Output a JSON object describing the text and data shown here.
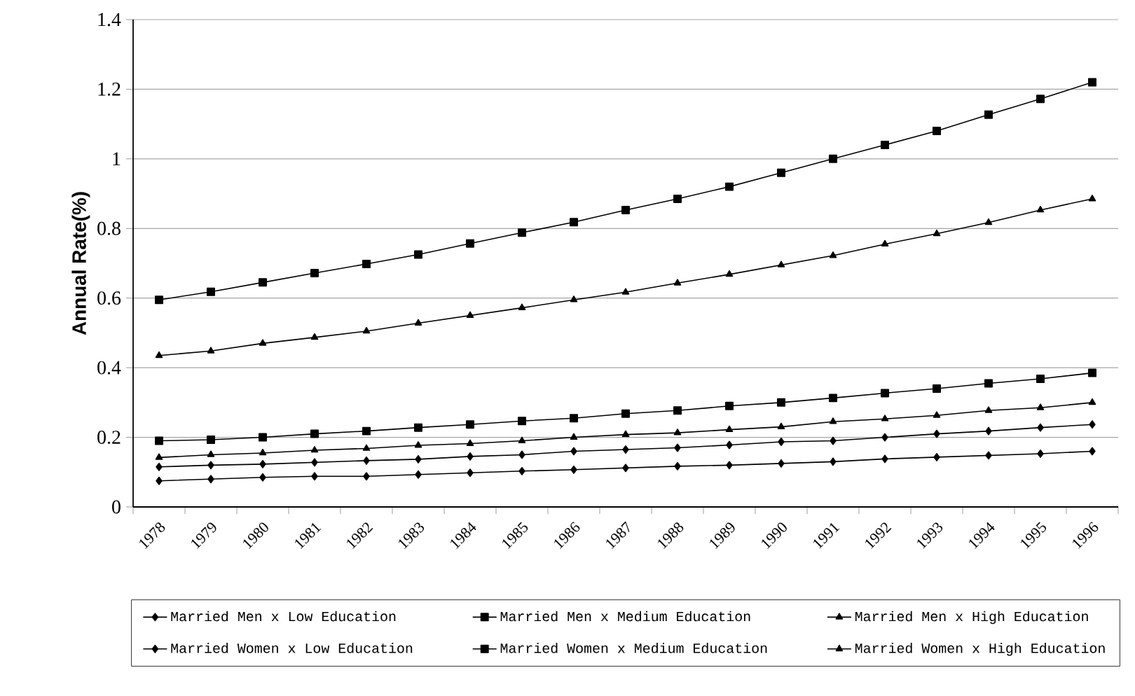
{
  "chart_data": {
    "type": "line",
    "ylabel": "Annual Rate(%)",
    "categories": [
      "1978",
      "1979",
      "1980",
      "1981",
      "1982",
      "1983",
      "1984",
      "1985",
      "1986",
      "1987",
      "1988",
      "1989",
      "1990",
      "1991",
      "1992",
      "1993",
      "1994",
      "1995",
      "1996"
    ],
    "series": [
      {
        "name": "Married Men x Low Education",
        "color": "#000000",
        "marker": "diamond",
        "values": [
          0.075,
          0.08,
          0.085,
          0.088,
          0.088,
          0.093,
          0.098,
          0.103,
          0.107,
          0.112,
          0.117,
          0.12,
          0.125,
          0.13,
          0.138,
          0.143,
          0.148,
          0.153,
          0.16
        ]
      },
      {
        "name": "Married Men x Medium Education",
        "color": "#000000",
        "marker": "square",
        "values": [
          0.595,
          0.618,
          0.645,
          0.672,
          0.698,
          0.725,
          0.757,
          0.788,
          0.818,
          0.853,
          0.885,
          0.92,
          0.96,
          1.0,
          1.04,
          1.08,
          1.127,
          1.172,
          1.22
        ]
      },
      {
        "name": "Married Men x High Education",
        "color": "#000000",
        "marker": "triangle",
        "values": [
          0.435,
          0.448,
          0.47,
          0.487,
          0.505,
          0.528,
          0.55,
          0.572,
          0.595,
          0.617,
          0.643,
          0.668,
          0.695,
          0.722,
          0.755,
          0.785,
          0.817,
          0.853,
          0.885
        ]
      },
      {
        "name": "Married Women x Low Education",
        "color": "#000000",
        "marker": "diamond",
        "values": [
          0.115,
          0.12,
          0.123,
          0.128,
          0.133,
          0.137,
          0.145,
          0.15,
          0.16,
          0.165,
          0.17,
          0.178,
          0.187,
          0.19,
          0.2,
          0.21,
          0.218,
          0.228,
          0.237
        ]
      },
      {
        "name": "Married Women x Medium Education",
        "color": "#000000",
        "marker": "square",
        "values": [
          0.19,
          0.193,
          0.2,
          0.21,
          0.218,
          0.228,
          0.237,
          0.247,
          0.255,
          0.268,
          0.277,
          0.29,
          0.3,
          0.313,
          0.327,
          0.34,
          0.355,
          0.368,
          0.385
        ]
      },
      {
        "name": "Married Women x High Education",
        "color": "#000000",
        "marker": "triangle",
        "values": [
          0.142,
          0.15,
          0.155,
          0.163,
          0.168,
          0.177,
          0.182,
          0.19,
          0.2,
          0.208,
          0.213,
          0.222,
          0.23,
          0.245,
          0.253,
          0.263,
          0.277,
          0.285,
          0.3
        ]
      }
    ],
    "ylim": [
      0,
      1.4
    ],
    "yticks": [
      0,
      0.2,
      0.4,
      0.6,
      0.8,
      1,
      1.2,
      1.4
    ],
    "grid": "y",
    "legend": "bottom",
    "line_style": "solid"
  }
}
